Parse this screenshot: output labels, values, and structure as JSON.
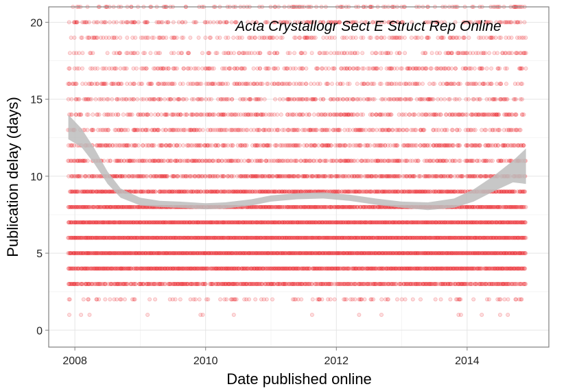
{
  "chart_data": {
    "type": "scatter",
    "title": "Acta Crystallogr Sect E Struct Rep Online",
    "xlabel": "Date published online",
    "ylabel": "Publication delay (days)",
    "xlim": [
      2007.6,
      2015.25
    ],
    "ylim": [
      -1.1,
      21
    ],
    "x_ticks": [
      2008,
      2010,
      2012,
      2014
    ],
    "x_tick_labels": [
      "2008",
      "2010",
      "2012",
      "2014"
    ],
    "y_ticks": [
      0,
      5,
      10,
      15,
      20
    ],
    "y_tick_labels": [
      "0",
      "5",
      "10",
      "15",
      "20"
    ],
    "grid": true,
    "legend": "none",
    "point_color": "#e8000b",
    "x_start": 2007.9,
    "x_end": 2014.9,
    "point_rows": [
      {
        "y": 21,
        "density": 0.22
      },
      {
        "y": 20,
        "density": 0.28
      },
      {
        "y": 19,
        "density": 0.25
      },
      {
        "y": 18,
        "density": 0.25
      },
      {
        "y": 17,
        "density": 0.3
      },
      {
        "y": 16,
        "density": 0.32
      },
      {
        "y": 15,
        "density": 0.32
      },
      {
        "y": 14,
        "density": 0.4
      },
      {
        "y": 13,
        "density": 0.42
      },
      {
        "y": 12,
        "density": 0.5
      },
      {
        "y": 11,
        "density": 0.55
      },
      {
        "y": 10,
        "density": 0.65
      },
      {
        "y": 9,
        "density": 0.85
      },
      {
        "y": 8,
        "density": 0.95
      },
      {
        "y": 7,
        "density": 1.0
      },
      {
        "y": 6,
        "density": 1.0
      },
      {
        "y": 5,
        "density": 1.0
      },
      {
        "y": 4,
        "density": 0.95
      },
      {
        "y": 3,
        "density": 0.8
      },
      {
        "y": 2,
        "density": 0.15
      },
      {
        "y": 1,
        "density": 0.02
      }
    ],
    "smooth_band": {
      "color": "#bdbdbd",
      "points": [
        {
          "x": 2007.9,
          "y": 13.2,
          "lower": 12.4,
          "upper": 14.0
        },
        {
          "x": 2008.1,
          "y": 12.5,
          "lower": 11.9,
          "upper": 13.1
        },
        {
          "x": 2008.3,
          "y": 11.3,
          "lower": 10.8,
          "upper": 11.8
        },
        {
          "x": 2008.5,
          "y": 9.9,
          "lower": 9.5,
          "upper": 10.3
        },
        {
          "x": 2008.7,
          "y": 8.9,
          "lower": 8.6,
          "upper": 9.2
        },
        {
          "x": 2009.0,
          "y": 8.35,
          "lower": 8.1,
          "upper": 8.6
        },
        {
          "x": 2009.3,
          "y": 8.2,
          "lower": 8.0,
          "upper": 8.4
        },
        {
          "x": 2009.6,
          "y": 8.15,
          "lower": 7.95,
          "upper": 8.35
        },
        {
          "x": 2010.0,
          "y": 8.05,
          "lower": 7.85,
          "upper": 8.25
        },
        {
          "x": 2010.3,
          "y": 8.1,
          "lower": 7.9,
          "upper": 8.3
        },
        {
          "x": 2010.7,
          "y": 8.3,
          "lower": 8.1,
          "upper": 8.5
        },
        {
          "x": 2011.0,
          "y": 8.55,
          "lower": 8.35,
          "upper": 8.75
        },
        {
          "x": 2011.4,
          "y": 8.7,
          "lower": 8.5,
          "upper": 8.9
        },
        {
          "x": 2011.8,
          "y": 8.75,
          "lower": 8.55,
          "upper": 8.95
        },
        {
          "x": 2012.2,
          "y": 8.6,
          "lower": 8.4,
          "upper": 8.8
        },
        {
          "x": 2012.6,
          "y": 8.35,
          "lower": 8.15,
          "upper": 8.55
        },
        {
          "x": 2013.0,
          "y": 8.15,
          "lower": 7.95,
          "upper": 8.35
        },
        {
          "x": 2013.4,
          "y": 8.05,
          "lower": 7.8,
          "upper": 8.3
        },
        {
          "x": 2013.8,
          "y": 8.25,
          "lower": 7.95,
          "upper": 8.55
        },
        {
          "x": 2014.1,
          "y": 8.75,
          "lower": 8.35,
          "upper": 9.15
        },
        {
          "x": 2014.4,
          "y": 9.5,
          "lower": 9.0,
          "upper": 10.0
        },
        {
          "x": 2014.7,
          "y": 10.3,
          "lower": 9.6,
          "upper": 11.0
        },
        {
          "x": 2014.9,
          "y": 10.65,
          "lower": 9.5,
          "upper": 11.8
        }
      ]
    }
  }
}
